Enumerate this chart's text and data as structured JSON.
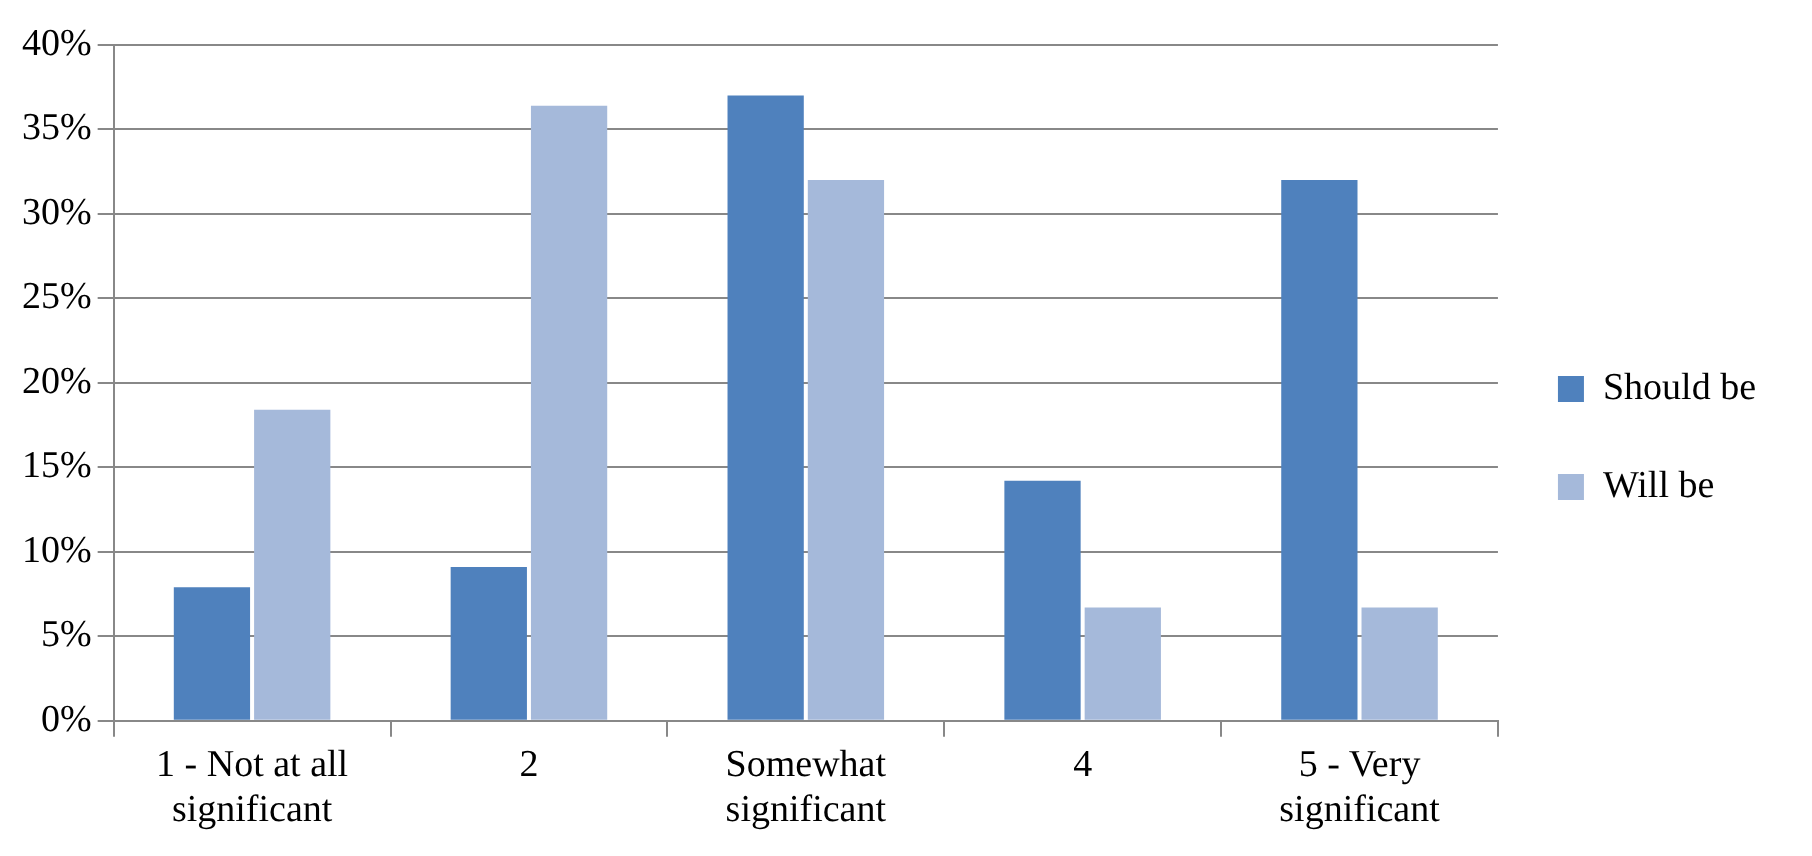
{
  "chart_data": {
    "type": "bar",
    "categories": [
      "1 - Not at all significant",
      "2",
      "Somewhat significant",
      "4",
      "5 - Very significant"
    ],
    "series": [
      {
        "name": "Should be",
        "color": "#4f81bd",
        "values": [
          7.9,
          9.1,
          37,
          14.2,
          32
        ]
      },
      {
        "name": "Will be",
        "color": "#a5b9da",
        "values": [
          18.4,
          36.4,
          32,
          6.7,
          6.7
        ]
      }
    ],
    "ylim": [
      0,
      40
    ],
    "yticks": [
      {
        "value": 0,
        "label": "0%"
      },
      {
        "value": 5,
        "label": "5%"
      },
      {
        "value": 10,
        "label": "10%"
      },
      {
        "value": 15,
        "label": "15%"
      },
      {
        "value": 20,
        "label": "20%"
      },
      {
        "value": 25,
        "label": "25%"
      },
      {
        "value": 30,
        "label": "30%"
      },
      {
        "value": 35,
        "label": "35%"
      },
      {
        "value": 40,
        "label": "40%"
      }
    ],
    "grid": "y",
    "legend": "right"
  }
}
